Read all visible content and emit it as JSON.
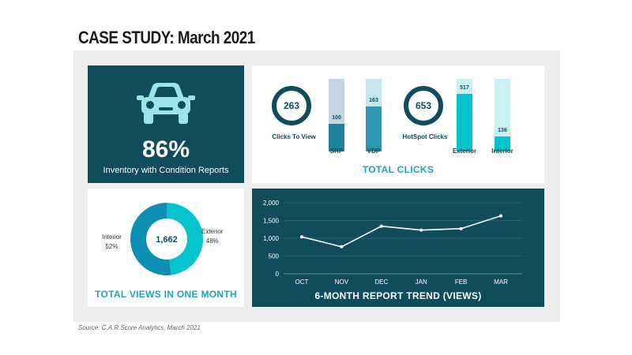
{
  "page": {
    "title": "CASE STUDY: March 2021",
    "source": "Source: C.A.R.Score Analytics, March 2021"
  },
  "colors": {
    "dark_teal": "#0f4c5c",
    "panel_bg": "#eeeeee",
    "accent_blue": "#1fa3bb",
    "light_teal": "#9ce3ea",
    "cyan": "#05c3cc"
  },
  "icons": {
    "car": "car-icon"
  },
  "chart_data": [
    {
      "type": "kpi",
      "value": "86%",
      "label": "Inventory with Condition Reports"
    },
    {
      "type": "bar",
      "title": "TOTAL CLICKS",
      "groups": [
        {
          "total_label": "Clicks To View",
          "total": "263",
          "bars": [
            {
              "category": "SRP",
              "value": 100,
              "value_label": "100"
            },
            {
              "category": "VDP",
              "value": 163,
              "value_label": "163"
            }
          ]
        },
        {
          "total_label": "HotSpot Clicks",
          "total": "653",
          "bars": [
            {
              "category": "Exterior",
              "value": 517,
              "value_label": "517"
            },
            {
              "category": "Interior",
              "value": 136,
              "value_label": "136"
            }
          ]
        }
      ]
    },
    {
      "type": "pie",
      "title": "TOTAL VIEWS IN ONE MONTH",
      "center_label": "1,662",
      "slices": [
        {
          "name": "Interior",
          "value": 52,
          "pct_label": "52%"
        },
        {
          "name": "Exterior",
          "value": 48,
          "pct_label": "48%"
        }
      ]
    },
    {
      "type": "line",
      "title": "6-MONTH REPORT TREND (VIEWS)",
      "categories": [
        "OCT",
        "NOV",
        "DEC",
        "JAN",
        "FEB",
        "MAR"
      ],
      "values": [
        1040,
        760,
        1340,
        1230,
        1270,
        1630
      ],
      "ylim": [
        0,
        2000
      ],
      "yticks": [
        0,
        500,
        1000,
        1500,
        2000
      ],
      "ytick_labels": [
        "0",
        "500",
        "1,000",
        "1,500",
        "2,000"
      ],
      "grid": true
    }
  ]
}
